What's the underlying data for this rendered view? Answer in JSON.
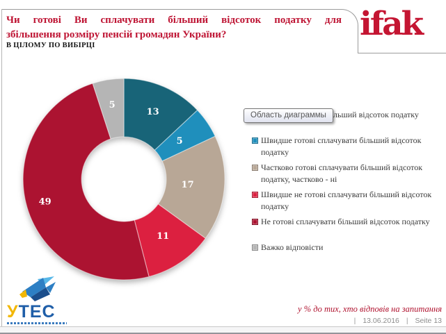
{
  "header": {
    "title_lines": [
      "Чи готові Ви сплачувати більший відсоток податку для",
      "збільшення розміру пенсій громадян України?"
    ],
    "subtitle": "В ЦІЛОМУ ПО ВИБІРЦІ"
  },
  "brand": {
    "logo_text": "ifak",
    "color": "#C41532"
  },
  "tooltip": {
    "text": "Область диаграммы"
  },
  "chart_data": {
    "type": "pie",
    "subtype": "donut",
    "unit": "%",
    "title": "",
    "legend_position": "right",
    "segments": [
      {
        "label": "Готові сплачувати більший відсоток податку",
        "value": 13,
        "color": "#186478",
        "label_r": 105,
        "gap_after": true
      },
      {
        "label": "Швидше готові сплачувати більший відсоток податку",
        "value": 5,
        "color": "#1F8FBC",
        "label_r": 97
      },
      {
        "label": "Частково готові сплачувати більший відсоток податку, частково - ні",
        "value": 17,
        "color": "#B8A796",
        "label_r": 92
      },
      {
        "label": "Швидше не готові сплачувати більший відсоток податку",
        "value": 11,
        "color": "#DC2040",
        "label_r": 100
      },
      {
        "label": "Не готові сплачувати більший відсоток податку",
        "value": 49,
        "color": "#AC1331",
        "label_r": 118,
        "gap_after": true
      },
      {
        "label": "Важко відповісти",
        "value": 5,
        "color": "#B5B5B5",
        "label_r": 108
      }
    ]
  },
  "footer": {
    "note": "у % до тих, хто відповів на запитання",
    "separator": "|",
    "date": "13.06.2016",
    "page": "Seite 13"
  },
  "utes": {
    "accent": "У",
    "rest": "ТЕС"
  }
}
